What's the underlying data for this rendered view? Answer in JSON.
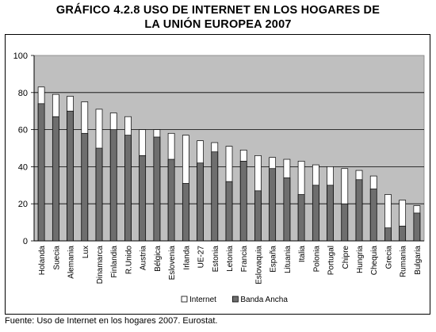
{
  "title_line1": "GRÁFICO 4.2.8 USO DE INTERNET EN LOS HOGARES DE",
  "title_line2": "LA UNIÓN EUROPEA 2007",
  "source": "Fuente: Uso de Internet en los hogares 2007. Eurostat.",
  "colors": {
    "plot_bg": "#bfbfbf",
    "internet": "#ffffff",
    "banda_ancha": "#6e6e6e",
    "axis": "#000000"
  },
  "chart_data": {
    "type": "bar",
    "stacked_overlay": true,
    "title": "GRÁFICO 4.2.8 USO DE INTERNET EN LOS HOGARES DE LA UNIÓN EUROPEA 2007",
    "xlabel": "",
    "ylabel": "",
    "ylim": [
      0,
      100
    ],
    "yticks": [
      0,
      20,
      40,
      60,
      80,
      100
    ],
    "grid": true,
    "legend_position": "bottom",
    "categories": [
      "Holanda",
      "Suecia",
      "Alemania",
      "Lux",
      "Dinamarca",
      "Finlandia",
      "R.Unido",
      "Austria",
      "Bélgica",
      "Eslovenia",
      "Irlanda",
      "UE-27",
      "Estonia",
      "Letonia",
      "Francia",
      "Eslovaquia",
      "España",
      "Lituania",
      "Italia",
      "Polonia",
      "Portugal",
      "Chipre",
      "Hungria",
      "Chequia",
      "Grecia",
      "Rumania",
      "Bulgaria"
    ],
    "series": [
      {
        "name": "Internet",
        "values": [
          83,
          79,
          78,
          75,
          71,
          69,
          67,
          60,
          60,
          58,
          57,
          54,
          53,
          51,
          49,
          46,
          45,
          44,
          43,
          41,
          40,
          39,
          38,
          35,
          25,
          22,
          19
        ]
      },
      {
        "name": "Banda Ancha",
        "values": [
          74,
          67,
          70,
          58,
          50,
          60,
          57,
          46,
          56,
          44,
          31,
          42,
          48,
          32,
          43,
          27,
          39,
          34,
          25,
          30,
          30,
          20,
          33,
          28,
          7,
          8,
          15
        ]
      }
    ]
  }
}
